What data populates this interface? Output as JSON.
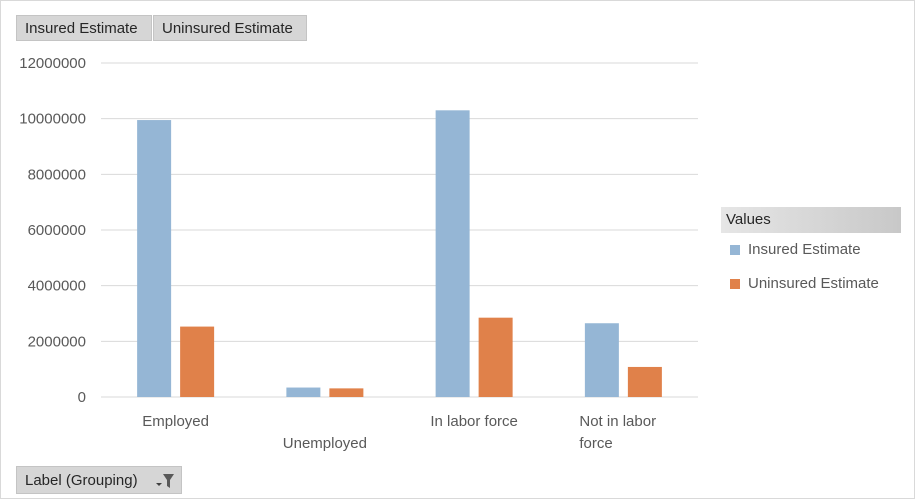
{
  "field_buttons": {
    "insured": "Insured Estimate",
    "uninsured": "Uninsured Estimate",
    "label_grouping": "Label (Grouping)"
  },
  "legend": {
    "title": "Values",
    "items": [
      {
        "label": "Insured Estimate",
        "color": "#95b6d5"
      },
      {
        "label": "Uninsured Estimate",
        "color": "#e0814a"
      }
    ]
  },
  "chart_data": {
    "type": "bar",
    "categories": [
      "Employed",
      "Unemployed",
      "In labor force",
      "Not in labor force"
    ],
    "category_lines": [
      [
        "Employed"
      ],
      [
        "Unemployed"
      ],
      [
        "In labor force"
      ],
      [
        "Not in labor",
        "force"
      ]
    ],
    "series": [
      {
        "name": "Insured Estimate",
        "color": "#95b6d5",
        "values": [
          9950000,
          340000,
          10300000,
          2650000
        ]
      },
      {
        "name": "Uninsured Estimate",
        "color": "#e0814a",
        "values": [
          2530000,
          310000,
          2850000,
          1080000
        ]
      }
    ],
    "ylim": [
      0,
      12000000
    ],
    "yticks": [
      "0",
      "2000000",
      "4000000",
      "6000000",
      "8000000",
      "10000000",
      "12000000"
    ],
    "grid": true,
    "legend_position": "right",
    "title": "",
    "xlabel": "",
    "ylabel": ""
  }
}
